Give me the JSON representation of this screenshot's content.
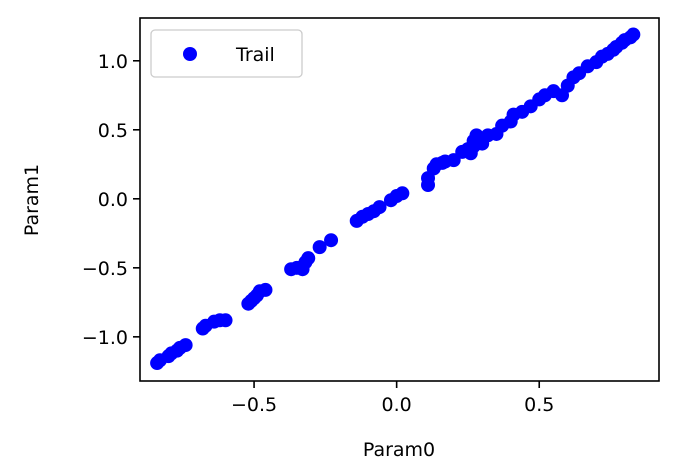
{
  "chart_data": {
    "type": "scatter",
    "xlabel": "Param0",
    "ylabel": "Param1",
    "xlim": [
      -0.9,
      0.92
    ],
    "ylim": [
      -1.32,
      1.31
    ],
    "xticks": [
      -0.5,
      0.0,
      0.5
    ],
    "yticks": [
      -1.0,
      -0.5,
      0.0,
      0.5,
      1.0
    ],
    "xtick_labels": [
      "−0.5",
      "0.0",
      "0.5"
    ],
    "ytick_labels": [
      "−1.0",
      "−0.5",
      "0.0",
      "0.5",
      "1.0"
    ],
    "grid": false,
    "legend": {
      "placement": "top-left",
      "entries": [
        "Trail"
      ]
    },
    "series": [
      {
        "name": "Trail",
        "color": "#0000ff",
        "marker": "circle",
        "points": [
          [
            -0.84,
            -1.19
          ],
          [
            -0.83,
            -1.17
          ],
          [
            -0.8,
            -1.14
          ],
          [
            -0.79,
            -1.12
          ],
          [
            -0.77,
            -1.1
          ],
          [
            -0.76,
            -1.08
          ],
          [
            -0.74,
            -1.06
          ],
          [
            -0.68,
            -0.94
          ],
          [
            -0.67,
            -0.92
          ],
          [
            -0.64,
            -0.89
          ],
          [
            -0.62,
            -0.88
          ],
          [
            -0.6,
            -0.88
          ],
          [
            -0.52,
            -0.76
          ],
          [
            -0.51,
            -0.74
          ],
          [
            -0.5,
            -0.72
          ],
          [
            -0.49,
            -0.7
          ],
          [
            -0.48,
            -0.67
          ],
          [
            -0.46,
            -0.66
          ],
          [
            -0.37,
            -0.51
          ],
          [
            -0.35,
            -0.5
          ],
          [
            -0.33,
            -0.51
          ],
          [
            -0.32,
            -0.46
          ],
          [
            -0.31,
            -0.43
          ],
          [
            -0.27,
            -0.35
          ],
          [
            -0.23,
            -0.3
          ],
          [
            -0.14,
            -0.16
          ],
          [
            -0.12,
            -0.13
          ],
          [
            -0.1,
            -0.11
          ],
          [
            -0.08,
            -0.09
          ],
          [
            -0.06,
            -0.06
          ],
          [
            -0.02,
            -0.01
          ],
          [
            0.0,
            0.02
          ],
          [
            0.02,
            0.04
          ],
          [
            0.11,
            0.1
          ],
          [
            0.11,
            0.15
          ],
          [
            0.13,
            0.22
          ],
          [
            0.14,
            0.25
          ],
          [
            0.16,
            0.26
          ],
          [
            0.17,
            0.27
          ],
          [
            0.2,
            0.28
          ],
          [
            0.23,
            0.34
          ],
          [
            0.25,
            0.36
          ],
          [
            0.26,
            0.33
          ],
          [
            0.27,
            0.38
          ],
          [
            0.27,
            0.42
          ],
          [
            0.28,
            0.46
          ],
          [
            0.3,
            0.4
          ],
          [
            0.32,
            0.46
          ],
          [
            0.35,
            0.47
          ],
          [
            0.37,
            0.53
          ],
          [
            0.4,
            0.56
          ],
          [
            0.41,
            0.61
          ],
          [
            0.44,
            0.63
          ],
          [
            0.47,
            0.67
          ],
          [
            0.5,
            0.72
          ],
          [
            0.52,
            0.75
          ],
          [
            0.55,
            0.78
          ],
          [
            0.58,
            0.75
          ],
          [
            0.6,
            0.82
          ],
          [
            0.62,
            0.88
          ],
          [
            0.64,
            0.91
          ],
          [
            0.67,
            0.96
          ],
          [
            0.7,
            0.99
          ],
          [
            0.72,
            1.03
          ],
          [
            0.74,
            1.05
          ],
          [
            0.76,
            1.08
          ],
          [
            0.77,
            1.1
          ],
          [
            0.79,
            1.13
          ],
          [
            0.8,
            1.15
          ],
          [
            0.82,
            1.17
          ],
          [
            0.83,
            1.19
          ]
        ]
      }
    ]
  }
}
